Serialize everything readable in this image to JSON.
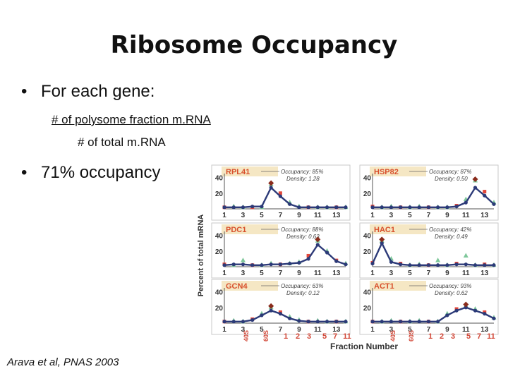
{
  "slide": {
    "title": "Ribosome Occupancy",
    "bullets": [
      "For each gene:",
      "71% occupancy"
    ],
    "fraction": {
      "numerator": "# of polysome fraction m.RNA",
      "denominator": "# of total m.RNA"
    },
    "citation": "Arava et al, PNAS 2003"
  },
  "chart_data": [
    {
      "type": "line",
      "gene": "RPL41",
      "occupancy": "Occupancy: 85%",
      "density": "Density: 1.28",
      "x": [
        1,
        2,
        3,
        4,
        5,
        6,
        7,
        8,
        9,
        10,
        11,
        12,
        13,
        14
      ],
      "yticks": [
        20,
        40
      ],
      "ylim": [
        0,
        45
      ],
      "values": [
        2,
        2,
        2,
        3,
        3,
        27,
        16,
        6,
        2,
        2,
        2,
        2,
        2,
        2
      ],
      "markers": [
        2,
        3,
        2,
        2,
        2,
        31,
        20,
        8,
        3,
        2,
        2,
        2,
        2,
        2
      ]
    },
    {
      "type": "line",
      "gene": "HSP82",
      "occupancy": "Occupancy: 87%",
      "density": "Density: 0.50",
      "x": [
        1,
        2,
        3,
        4,
        5,
        6,
        7,
        8,
        9,
        10,
        11,
        12,
        13,
        14
      ],
      "yticks": [
        20,
        40
      ],
      "ylim": [
        0,
        45
      ],
      "values": [
        2,
        2,
        2,
        2,
        2,
        2,
        2,
        2,
        2,
        3,
        8,
        27,
        17,
        6
      ],
      "markers": [
        3,
        2,
        3,
        2,
        2,
        3,
        2,
        2,
        2,
        4,
        12,
        36,
        22,
        8
      ]
    },
    {
      "type": "line",
      "gene": "PDC1",
      "occupancy": "Occupancy: 88%",
      "density": "Density: 0.63",
      "x": [
        1,
        2,
        3,
        4,
        5,
        6,
        7,
        8,
        9,
        10,
        11,
        12,
        13,
        14
      ],
      "yticks": [
        20,
        40
      ],
      "ylim": [
        0,
        45
      ],
      "values": [
        2,
        3,
        3,
        2,
        2,
        3,
        3,
        4,
        5,
        10,
        28,
        18,
        7,
        3
      ],
      "markers": [
        3,
        2,
        8,
        2,
        2,
        4,
        3,
        4,
        6,
        14,
        33,
        20,
        8,
        4
      ]
    },
    {
      "type": "line",
      "gene": "HAC1",
      "occupancy": "Occupancy: 42%",
      "density": "Density: 0.49",
      "x": [
        1,
        2,
        3,
        4,
        5,
        6,
        7,
        8,
        9,
        10,
        11,
        12,
        13,
        14
      ],
      "yticks": [
        20,
        40
      ],
      "ylim": [
        0,
        45
      ],
      "values": [
        4,
        30,
        6,
        3,
        2,
        2,
        2,
        2,
        2,
        3,
        3,
        2,
        2,
        2
      ],
      "markers": [
        5,
        33,
        10,
        4,
        2,
        3,
        2,
        8,
        2,
        4,
        14,
        2,
        3,
        2
      ]
    },
    {
      "type": "line",
      "gene": "GCN4",
      "occupancy": "Occupancy: 63%",
      "density": "Density: 0.12",
      "x": [
        1,
        2,
        3,
        4,
        5,
        6,
        7,
        8,
        9,
        10,
        11,
        12,
        13,
        14
      ],
      "yticks": [
        20,
        40
      ],
      "ylim": [
        0,
        45
      ],
      "values": [
        2,
        2,
        2,
        4,
        10,
        16,
        12,
        6,
        3,
        2,
        2,
        2,
        2,
        2
      ],
      "markers": [
        2,
        3,
        2,
        5,
        12,
        20,
        14,
        8,
        4,
        2,
        3,
        2,
        2,
        2
      ]
    },
    {
      "type": "line",
      "gene": "ACT1",
      "occupancy": "Occupancy: 93%",
      "density": "Density: 0.62",
      "x": [
        1,
        2,
        3,
        4,
        5,
        6,
        7,
        8,
        9,
        10,
        11,
        12,
        13,
        14
      ],
      "yticks": [
        20,
        40
      ],
      "ylim": [
        0,
        45
      ],
      "values": [
        2,
        2,
        2,
        2,
        2,
        2,
        2,
        2,
        10,
        16,
        20,
        16,
        12,
        6
      ],
      "markers": [
        2,
        2,
        3,
        2,
        2,
        3,
        2,
        2,
        12,
        18,
        22,
        18,
        14,
        7
      ]
    }
  ],
  "figure": {
    "ylabel": "Percent of total mRNA",
    "xlabel": "Fraction Number",
    "xticks": [
      "1",
      "3",
      "5",
      "7",
      "9",
      "11",
      "13"
    ],
    "bottom_labels": [
      "40S",
      "60S",
      "1",
      "2",
      "3",
      "5",
      "7",
      "11"
    ],
    "colors": {
      "line": "#2c3a78",
      "peak_marker": "#8a2c1c",
      "alt_marker": "#7ec79a",
      "outlier": "#e2473a",
      "title_bar_left": "#f5e7c4",
      "gene_label": "#d8502c",
      "panel_border": "#c9c9c9"
    }
  }
}
